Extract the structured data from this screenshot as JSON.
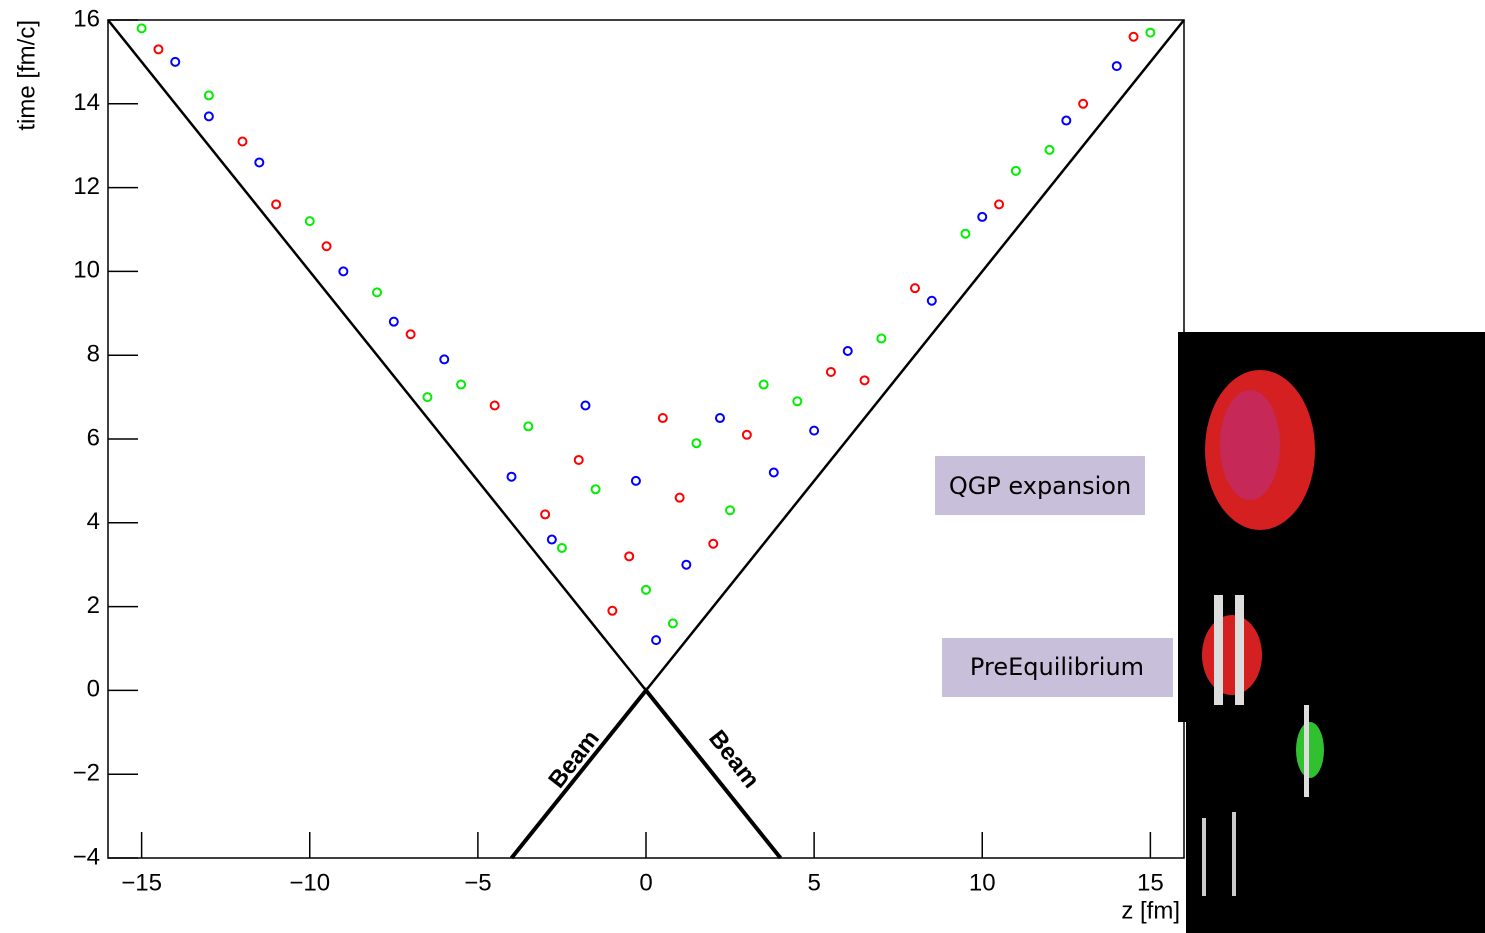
{
  "chart_data": {
    "type": "scatter",
    "xlabel": "z [fm]",
    "ylabel": "time [fm/c]",
    "xlim": [
      -16,
      16
    ],
    "ylim": [
      -4,
      16
    ],
    "xticks": [
      {
        "value": -15,
        "label": "−15"
      },
      {
        "value": -10,
        "label": "−10"
      },
      {
        "value": -5,
        "label": "−5"
      },
      0,
      5,
      10,
      15
    ],
    "yticks": [
      {
        "value": -4,
        "label": "−4"
      },
      {
        "value": -2,
        "label": "−2"
      },
      0,
      2,
      4,
      6,
      8,
      10,
      12,
      14,
      16
    ],
    "series": [
      {
        "color": "#ff0000",
        "x": [
          -14.5,
          -12,
          -9.5,
          -7,
          -4.5,
          -2,
          -0.5,
          1,
          3,
          5.5,
          8,
          10.5,
          13,
          14.5,
          -1,
          2,
          -3,
          0.5,
          6.5,
          -11
        ],
        "values": [
          15.3,
          13.1,
          10.6,
          8.5,
          6.8,
          5.5,
          3.2,
          4.6,
          6.1,
          7.6,
          9.6,
          11.6,
          14.0,
          15.6,
          1.9,
          3.5,
          4.2,
          6.5,
          7.4,
          11.6
        ]
      },
      {
        "color": "#00ee00",
        "x": [
          -15,
          -13,
          -10,
          -8,
          -5.5,
          -3.5,
          -1.5,
          0,
          1.5,
          2.5,
          4.5,
          7,
          9.5,
          12,
          15,
          -2.5,
          0.8,
          -6.5,
          3.5,
          11
        ],
        "values": [
          15.8,
          14.2,
          11.2,
          9.5,
          7.3,
          6.3,
          4.8,
          2.4,
          5.9,
          4.3,
          6.9,
          8.4,
          10.9,
          12.9,
          15.7,
          3.4,
          1.6,
          7.0,
          7.3,
          12.4
        ]
      },
      {
        "color": "#0000ff",
        "x": [
          -14,
          -11.5,
          -9,
          -6,
          -4,
          -1.8,
          -0.3,
          0.3,
          2.2,
          3.8,
          6,
          8.5,
          10,
          12.5,
          14,
          -7.5,
          -2.8,
          1.2,
          5,
          -13
        ],
        "values": [
          15.0,
          12.6,
          10.0,
          7.9,
          5.1,
          6.8,
          5.0,
          1.2,
          6.5,
          5.2,
          8.1,
          9.3,
          11.3,
          13.6,
          14.9,
          8.8,
          3.6,
          3.0,
          6.2,
          13.7
        ]
      }
    ],
    "lines": [
      {
        "x": [
          -16,
          0,
          16
        ],
        "y": [
          16,
          0,
          16
        ]
      },
      {
        "x": [
          -4,
          0,
          4
        ],
        "y": [
          -4,
          0,
          -4
        ]
      }
    ],
    "annotations": [
      "Beam",
      "Beam"
    ]
  },
  "inset_labels": [
    "QGP expansion",
    "PreEquilibrium"
  ]
}
